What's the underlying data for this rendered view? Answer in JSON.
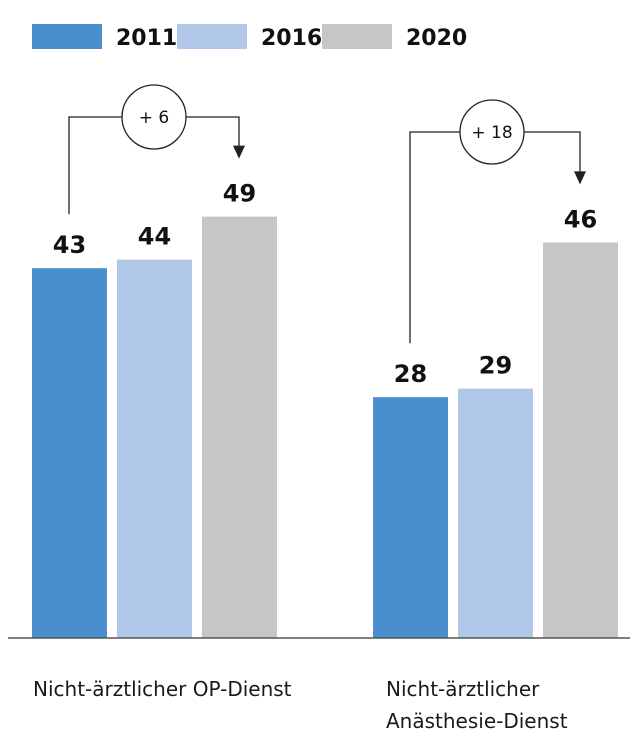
{
  "chart_data": {
    "type": "bar",
    "categories": [
      "Nicht-ärztlicher OP-Dienst",
      "Nicht-ärztlicher Anästhesie-Dienst"
    ],
    "category_label_lines": [
      [
        "Nicht-ärztlicher OP-Dienst"
      ],
      [
        "Nicht-ärztlicher",
        "Anästhesie-Dienst"
      ]
    ],
    "series": [
      {
        "name": "2011",
        "values": [
          43,
          28
        ],
        "color": "#4a8fcd"
      },
      {
        "name": "2016",
        "values": [
          44,
          29
        ],
        "color": "#b0c7e8"
      },
      {
        "name": "2020",
        "values": [
          49,
          46
        ],
        "color": "#c6c6c6"
      }
    ],
    "annotations": [
      {
        "label": "+ 6",
        "category": 0,
        "from_series": 0,
        "to_series": 2
      },
      {
        "label": "+ 18",
        "category": 1,
        "from_series": 0,
        "to_series": 2
      }
    ],
    "ylim": [
      0,
      50
    ],
    "legend_position": "top-left",
    "grid": false
  }
}
